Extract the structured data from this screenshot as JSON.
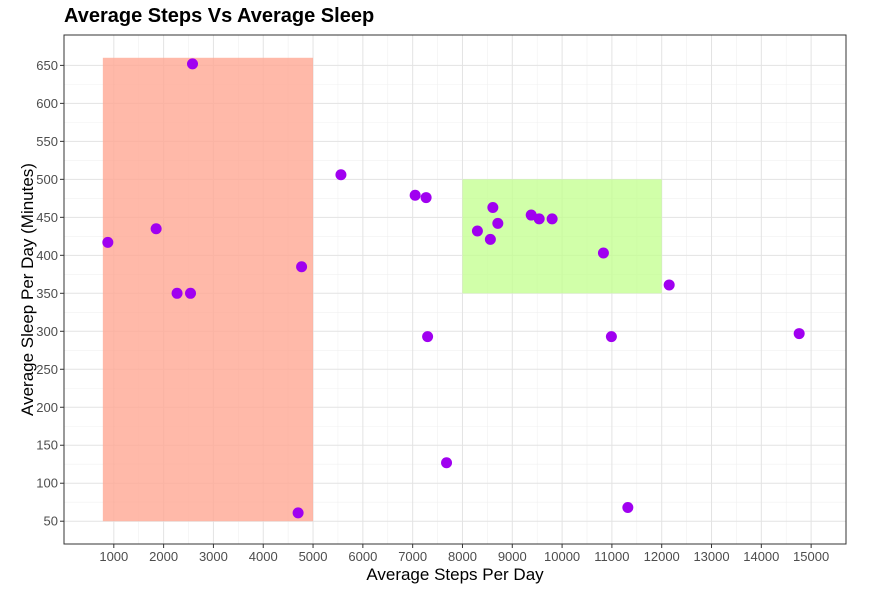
{
  "chart_data": {
    "type": "scatter",
    "title": "Average Steps Vs Average Sleep",
    "xlabel": "Average Steps Per Day",
    "ylabel": "Average Sleep Per Day (Minutes)",
    "xlim": [
      0,
      15700
    ],
    "ylim": [
      20,
      690
    ],
    "xticks": [
      1000,
      2000,
      3000,
      4000,
      5000,
      6000,
      7000,
      8000,
      9000,
      10000,
      11000,
      12000,
      13000,
      14000,
      15000
    ],
    "yticks": [
      50,
      100,
      150,
      200,
      250,
      300,
      350,
      400,
      450,
      500,
      550,
      600,
      650
    ],
    "grid": true,
    "legend": "none",
    "regions": [
      {
        "x": [
          780,
          5000
        ],
        "y": [
          50,
          660
        ],
        "color": "#ffa894",
        "opacity": 0.8
      },
      {
        "x": [
          8000,
          12000
        ],
        "y": [
          350,
          500
        ],
        "color": "#c2ff8c",
        "opacity": 0.75
      }
    ],
    "point_color": "#a000f0",
    "points": [
      {
        "x": 880,
        "y": 417
      },
      {
        "x": 1850,
        "y": 435
      },
      {
        "x": 2270,
        "y": 350
      },
      {
        "x": 2540,
        "y": 350
      },
      {
        "x": 2580,
        "y": 652
      },
      {
        "x": 4700,
        "y": 61
      },
      {
        "x": 4770,
        "y": 385
      },
      {
        "x": 5560,
        "y": 506
      },
      {
        "x": 7050,
        "y": 479
      },
      {
        "x": 7270,
        "y": 476
      },
      {
        "x": 7300,
        "y": 293
      },
      {
        "x": 7680,
        "y": 127
      },
      {
        "x": 8300,
        "y": 432
      },
      {
        "x": 8560,
        "y": 421
      },
      {
        "x": 8610,
        "y": 463
      },
      {
        "x": 8710,
        "y": 442
      },
      {
        "x": 9380,
        "y": 453
      },
      {
        "x": 9540,
        "y": 448
      },
      {
        "x": 9800,
        "y": 448
      },
      {
        "x": 10830,
        "y": 403
      },
      {
        "x": 10990,
        "y": 293
      },
      {
        "x": 11320,
        "y": 68
      },
      {
        "x": 12150,
        "y": 361
      },
      {
        "x": 14760,
        "y": 297
      }
    ]
  }
}
